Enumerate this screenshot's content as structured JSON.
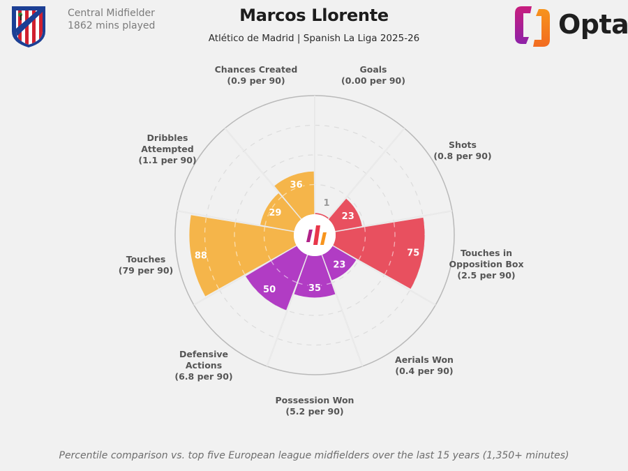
{
  "header": {
    "position": "Central Midfielder",
    "minutes": "1862 mins played",
    "player_name": "Marcos Llorente",
    "subtitle": "Atlético de Madrid | Spanish La Liga 2025-26",
    "brand": "Opta"
  },
  "footnote": "Percentile comparison vs. top five European league midfielders over the last 15 years (1,350+ minutes)",
  "colors": {
    "attacking": "#e8505f",
    "defending": "#b13cc4",
    "possession": "#f5b54a",
    "background": "#f1f1f1"
  },
  "chart_data": {
    "type": "polar-bar",
    "title": "Marcos Llorente",
    "subtitle": "Atlético de Madrid | Spanish La Liga 2025-26",
    "value_range": [
      0,
      100
    ],
    "gridlines": [
      25,
      50,
      75
    ],
    "categories": [
      "Goals",
      "Shots",
      "Touches in Opposition Box",
      "Aerials Won",
      "Possession Won",
      "Defensive Actions",
      "Touches",
      "Dribbles Attempted",
      "Chances Created"
    ],
    "per90": [
      "0.00 per 90",
      "0.8 per 90",
      "2.5 per 90",
      "0.4 per 90",
      "5.2 per 90",
      "6.8 per 90",
      "79 per 90",
      "1.1 per 90",
      "0.9 per 90"
    ],
    "values": [
      1,
      23,
      75,
      23,
      35,
      50,
      88,
      29,
      36
    ],
    "groups": [
      "attacking",
      "attacking",
      "attacking",
      "defending",
      "defending",
      "defending",
      "possession",
      "possession",
      "possession"
    ]
  },
  "labels": [
    {
      "name": "Goals",
      "per": "(0.00 per 90)"
    },
    {
      "name": "Shots",
      "per": "(0.8 per 90)"
    },
    {
      "name": "Touches in\nOpposition Box",
      "per": "(2.5 per 90)"
    },
    {
      "name": "Aerials Won",
      "per": "(0.4 per 90)"
    },
    {
      "name": "Possession Won",
      "per": "(5.2 per 90)"
    },
    {
      "name": "Defensive\nActions",
      "per": "(6.8 per 90)"
    },
    {
      "name": "Touches",
      "per": "(79 per 90)"
    },
    {
      "name": "Dribbles\nAttempted",
      "per": "(1.1 per 90)"
    },
    {
      "name": "Chances Created",
      "per": "(0.9 per 90)"
    }
  ]
}
